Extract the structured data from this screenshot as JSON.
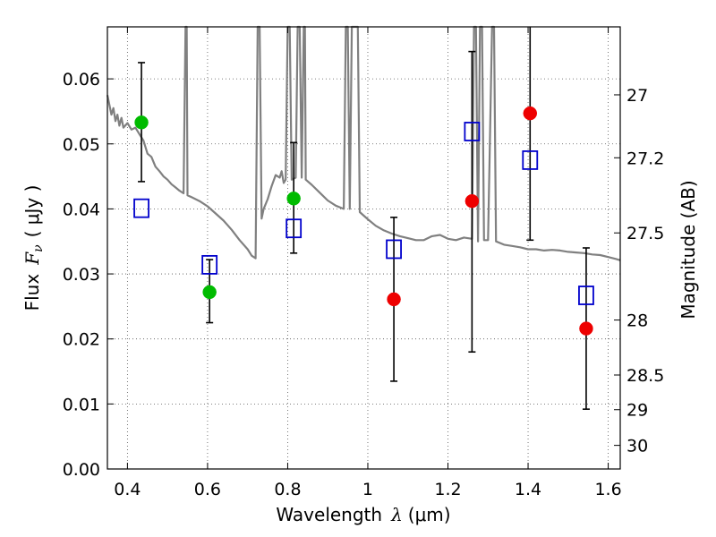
{
  "chart_data": {
    "type": "scatter",
    "xlabel": {
      "prefix": "Wavelength",
      "symbol": "λ",
      "unit": "(μm)"
    },
    "ylabel": {
      "prefix": "Flux",
      "symbol": "F",
      "sub": "ν",
      "unit": "( μJy )"
    },
    "y2label": "Magnitude (AB)",
    "xlim": [
      0.35,
      1.63
    ],
    "ylim": [
      0.0,
      0.068
    ],
    "grid": true,
    "x_ticks": [
      {
        "v": 0.4,
        "label": "0.4"
      },
      {
        "v": 0.6,
        "label": "0.6"
      },
      {
        "v": 0.8,
        "label": "0.8"
      },
      {
        "v": 1.0,
        "label": "1"
      },
      {
        "v": 1.2,
        "label": "1.2"
      },
      {
        "v": 1.4,
        "label": "1.4"
      },
      {
        "v": 1.6,
        "label": "1.6"
      }
    ],
    "y_ticks": [
      {
        "v": 0.0,
        "label": "0.00"
      },
      {
        "v": 0.01,
        "label": "0.01"
      },
      {
        "v": 0.02,
        "label": "0.02"
      },
      {
        "v": 0.03,
        "label": "0.03"
      },
      {
        "v": 0.04,
        "label": "0.04"
      },
      {
        "v": 0.05,
        "label": "0.05"
      },
      {
        "v": 0.06,
        "label": "0.06"
      }
    ],
    "y2_ticks": [
      "27",
      "27.2",
      "27.5",
      "28",
      "28.5",
      "29",
      "30"
    ],
    "colors": {
      "model": "#808080",
      "green": "#00bb00",
      "red": "#ee0000",
      "square": "#0000cc",
      "errorbar": "#000000",
      "grid": "#555555"
    },
    "model_sed": [
      [
        0.35,
        0.0575
      ],
      [
        0.36,
        0.0545
      ],
      [
        0.365,
        0.0555
      ],
      [
        0.37,
        0.0535
      ],
      [
        0.375,
        0.0545
      ],
      [
        0.38,
        0.0528
      ],
      [
        0.385,
        0.054
      ],
      [
        0.39,
        0.0525
      ],
      [
        0.4,
        0.0532
      ],
      [
        0.41,
        0.0522
      ],
      [
        0.42,
        0.0525
      ],
      [
        0.43,
        0.0515
      ],
      [
        0.44,
        0.0505
      ],
      [
        0.45,
        0.0485
      ],
      [
        0.46,
        0.048
      ],
      [
        0.47,
        0.0465
      ],
      [
        0.48,
        0.0458
      ],
      [
        0.49,
        0.045
      ],
      [
        0.5,
        0.0445
      ],
      [
        0.51,
        0.0438
      ],
      [
        0.52,
        0.0433
      ],
      [
        0.53,
        0.0428
      ],
      [
        0.54,
        0.0424
      ],
      [
        0.545,
        0.068
      ],
      [
        0.548,
        0.068
      ],
      [
        0.55,
        0.0421
      ],
      [
        0.56,
        0.0418
      ],
      [
        0.58,
        0.0412
      ],
      [
        0.6,
        0.0404
      ],
      [
        0.62,
        0.0393
      ],
      [
        0.64,
        0.0382
      ],
      [
        0.66,
        0.0368
      ],
      [
        0.68,
        0.0352
      ],
      [
        0.7,
        0.0338
      ],
      [
        0.71,
        0.0328
      ],
      [
        0.72,
        0.0324
      ],
      [
        0.725,
        0.068
      ],
      [
        0.73,
        0.068
      ],
      [
        0.735,
        0.0385
      ],
      [
        0.74,
        0.04
      ],
      [
        0.75,
        0.0415
      ],
      [
        0.76,
        0.0435
      ],
      [
        0.77,
        0.0452
      ],
      [
        0.78,
        0.0448
      ],
      [
        0.785,
        0.0458
      ],
      [
        0.79,
        0.044
      ],
      [
        0.795,
        0.0445
      ],
      [
        0.8,
        0.068
      ],
      [
        0.805,
        0.068
      ],
      [
        0.81,
        0.0445
      ],
      [
        0.82,
        0.0448
      ],
      [
        0.825,
        0.068
      ],
      [
        0.83,
        0.068
      ],
      [
        0.835,
        0.0448
      ],
      [
        0.84,
        0.068
      ],
      [
        0.843,
        0.068
      ],
      [
        0.845,
        0.0445
      ],
      [
        0.86,
        0.0437
      ],
      [
        0.88,
        0.0425
      ],
      [
        0.9,
        0.0413
      ],
      [
        0.92,
        0.0405
      ],
      [
        0.94,
        0.04
      ],
      [
        0.945,
        0.068
      ],
      [
        0.95,
        0.068
      ],
      [
        0.955,
        0.04
      ],
      [
        0.96,
        0.068
      ],
      [
        0.965,
        0.068
      ],
      [
        0.97,
        0.068
      ],
      [
        0.975,
        0.068
      ],
      [
        0.98,
        0.0395
      ],
      [
        1.0,
        0.0384
      ],
      [
        1.02,
        0.0374
      ],
      [
        1.04,
        0.0367
      ],
      [
        1.06,
        0.0362
      ],
      [
        1.08,
        0.0358
      ],
      [
        1.1,
        0.0355
      ],
      [
        1.12,
        0.0352
      ],
      [
        1.14,
        0.0352
      ],
      [
        1.16,
        0.0358
      ],
      [
        1.18,
        0.036
      ],
      [
        1.2,
        0.0354
      ],
      [
        1.22,
        0.0352
      ],
      [
        1.24,
        0.0356
      ],
      [
        1.26,
        0.0354
      ],
      [
        1.265,
        0.068
      ],
      [
        1.27,
        0.068
      ],
      [
        1.275,
        0.035
      ],
      [
        1.28,
        0.068
      ],
      [
        1.285,
        0.068
      ],
      [
        1.29,
        0.0352
      ],
      [
        1.3,
        0.0352
      ],
      [
        1.31,
        0.068
      ],
      [
        1.315,
        0.068
      ],
      [
        1.32,
        0.035
      ],
      [
        1.34,
        0.0345
      ],
      [
        1.36,
        0.0343
      ],
      [
        1.38,
        0.0341
      ],
      [
        1.4,
        0.0338
      ],
      [
        1.42,
        0.0338
      ],
      [
        1.44,
        0.0336
      ],
      [
        1.46,
        0.0337
      ],
      [
        1.48,
        0.0336
      ],
      [
        1.5,
        0.0334
      ],
      [
        1.52,
        0.0333
      ],
      [
        1.54,
        0.0332
      ],
      [
        1.56,
        0.033
      ],
      [
        1.58,
        0.0329
      ],
      [
        1.6,
        0.0326
      ],
      [
        1.62,
        0.0323
      ],
      [
        1.63,
        0.0321
      ]
    ],
    "series": [
      {
        "marker": "green-circle",
        "points": [
          {
            "x": 0.435,
            "y": 0.0533,
            "err": [
              0.0442,
              0.0625
            ]
          },
          {
            "x": 0.605,
            "y": 0.0272,
            "err": [
              0.0225,
              0.0322
            ]
          },
          {
            "x": 0.815,
            "y": 0.0416,
            "err": [
              0.0332,
              0.0502
            ]
          }
        ]
      },
      {
        "marker": "red-circle",
        "points": [
          {
            "x": 1.065,
            "y": 0.0261,
            "err": [
              0.0135,
              0.0387
            ]
          },
          {
            "x": 1.26,
            "y": 0.0412,
            "err": [
              0.018,
              0.0642
            ]
          },
          {
            "x": 1.405,
            "y": 0.0547,
            "err": [
              0.0352,
              0.068
            ]
          },
          {
            "x": 1.545,
            "y": 0.0216,
            "err": [
              0.0092,
              0.034
            ]
          }
        ]
      },
      {
        "marker": "blue-open-square",
        "points": [
          {
            "x": 0.435,
            "y": 0.0401
          },
          {
            "x": 0.605,
            "y": 0.0314
          },
          {
            "x": 0.815,
            "y": 0.037
          },
          {
            "x": 1.065,
            "y": 0.0338
          },
          {
            "x": 1.26,
            "y": 0.0519
          },
          {
            "x": 1.405,
            "y": 0.0475
          },
          {
            "x": 1.545,
            "y": 0.0267
          }
        ]
      }
    ]
  }
}
